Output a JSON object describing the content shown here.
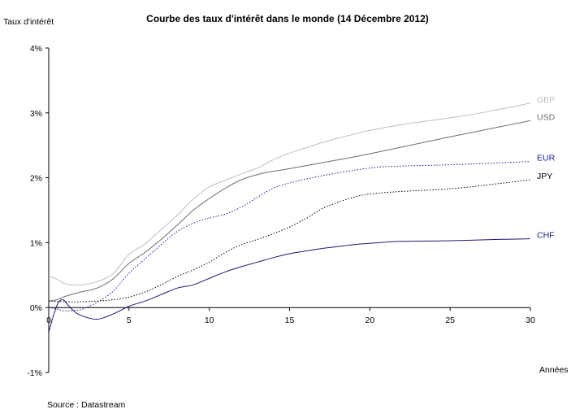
{
  "chart_data": {
    "type": "line",
    "title": "Courbe des taux d'intérêt dans le monde (14 Décembre 2012)",
    "ylabel": "Taux d'intérêt",
    "xlabel": "Années",
    "source": "Source : Datastream",
    "xlim": [
      0,
      30
    ],
    "ylim": [
      -1,
      4
    ],
    "x_ticks": [
      {
        "value": 0,
        "label": "0"
      },
      {
        "value": 5,
        "label": "5"
      },
      {
        "value": 10,
        "label": "10"
      },
      {
        "value": 15,
        "label": "15"
      },
      {
        "value": 20,
        "label": "20"
      },
      {
        "value": 25,
        "label": "25"
      },
      {
        "value": 30,
        "label": "30"
      }
    ],
    "y_ticks": [
      {
        "value": -1,
        "label": "-1%"
      },
      {
        "value": 0,
        "label": "0%"
      },
      {
        "value": 1,
        "label": "1%"
      },
      {
        "value": 2,
        "label": "2%"
      },
      {
        "value": 3,
        "label": "3%"
      },
      {
        "value": 4,
        "label": "4%"
      }
    ],
    "grid": false,
    "legend": "labels at line ends",
    "series": [
      {
        "name": "GBP",
        "color": "#bdbdbd",
        "dash": "solid",
        "points": [
          [
            0,
            0.48
          ],
          [
            0.5,
            0.44
          ],
          [
            1,
            0.37
          ],
          [
            2,
            0.35
          ],
          [
            3,
            0.4
          ],
          [
            4,
            0.52
          ],
          [
            5,
            0.82
          ],
          [
            6,
            0.98
          ],
          [
            7,
            1.2
          ],
          [
            8,
            1.42
          ],
          [
            9,
            1.67
          ],
          [
            10,
            1.86
          ],
          [
            11,
            1.96
          ],
          [
            12,
            2.06
          ],
          [
            13,
            2.15
          ],
          [
            14,
            2.28
          ],
          [
            15,
            2.38
          ],
          [
            16,
            2.46
          ],
          [
            17,
            2.54
          ],
          [
            18,
            2.61
          ],
          [
            19,
            2.67
          ],
          [
            20,
            2.73
          ],
          [
            22,
            2.82
          ],
          [
            24,
            2.89
          ],
          [
            26,
            2.96
          ],
          [
            28,
            3.05
          ],
          [
            30,
            3.15
          ]
        ]
      },
      {
        "name": "USD",
        "color": "#6e6e6e",
        "dash": "solid",
        "points": [
          [
            0,
            0.1
          ],
          [
            0.5,
            0.12
          ],
          [
            1,
            0.17
          ],
          [
            2,
            0.24
          ],
          [
            3,
            0.3
          ],
          [
            4,
            0.44
          ],
          [
            5,
            0.68
          ],
          [
            6,
            0.85
          ],
          [
            7,
            1.05
          ],
          [
            8,
            1.27
          ],
          [
            9,
            1.5
          ],
          [
            10,
            1.68
          ],
          [
            11,
            1.84
          ],
          [
            12,
            1.97
          ],
          [
            13,
            2.05
          ],
          [
            14,
            2.1
          ],
          [
            15,
            2.14
          ],
          [
            17,
            2.23
          ],
          [
            20,
            2.37
          ],
          [
            25,
            2.63
          ],
          [
            30,
            2.88
          ]
        ]
      },
      {
        "name": "EUR",
        "color": "#1a1aa0",
        "dash": "dotted",
        "points": [
          [
            0,
            0.0
          ],
          [
            0.5,
            -0.02
          ],
          [
            1,
            -0.05
          ],
          [
            2,
            -0.03
          ],
          [
            3,
            0.08
          ],
          [
            4,
            0.25
          ],
          [
            5,
            0.53
          ],
          [
            6,
            0.75
          ],
          [
            7,
            0.97
          ],
          [
            8,
            1.17
          ],
          [
            9,
            1.3
          ],
          [
            10,
            1.38
          ],
          [
            11,
            1.44
          ],
          [
            12,
            1.55
          ],
          [
            13,
            1.7
          ],
          [
            14,
            1.84
          ],
          [
            15,
            1.92
          ],
          [
            17,
            2.03
          ],
          [
            20,
            2.15
          ],
          [
            22,
            2.18
          ],
          [
            25,
            2.2
          ],
          [
            30,
            2.25
          ]
        ]
      },
      {
        "name": "JPY",
        "color": "#000000",
        "dash": "dotted",
        "points": [
          [
            0,
            0.1
          ],
          [
            1,
            0.09
          ],
          [
            2,
            0.09
          ],
          [
            3,
            0.1
          ],
          [
            4,
            0.12
          ],
          [
            5,
            0.16
          ],
          [
            6,
            0.24
          ],
          [
            7,
            0.35
          ],
          [
            8,
            0.48
          ],
          [
            9,
            0.58
          ],
          [
            10,
            0.7
          ],
          [
            11,
            0.85
          ],
          [
            12,
            0.97
          ],
          [
            13,
            1.05
          ],
          [
            14,
            1.14
          ],
          [
            15,
            1.24
          ],
          [
            16,
            1.37
          ],
          [
            17,
            1.52
          ],
          [
            18,
            1.62
          ],
          [
            19,
            1.7
          ],
          [
            20,
            1.75
          ],
          [
            22,
            1.79
          ],
          [
            25,
            1.83
          ],
          [
            28,
            1.91
          ],
          [
            30,
            1.97
          ]
        ]
      },
      {
        "name": "CHF",
        "color": "#1a1a6e",
        "dash": "solid",
        "points": [
          [
            0,
            -0.38
          ],
          [
            0.3,
            -0.12
          ],
          [
            0.6,
            0.08
          ],
          [
            0.9,
            0.12
          ],
          [
            1.2,
            0.04
          ],
          [
            1.6,
            -0.06
          ],
          [
            2,
            -0.12
          ],
          [
            3,
            -0.18
          ],
          [
            4,
            -0.1
          ],
          [
            5,
            0.02
          ],
          [
            6,
            0.1
          ],
          [
            7,
            0.2
          ],
          [
            8,
            0.3
          ],
          [
            9,
            0.35
          ],
          [
            10,
            0.45
          ],
          [
            11,
            0.55
          ],
          [
            12,
            0.63
          ],
          [
            13,
            0.7
          ],
          [
            14,
            0.77
          ],
          [
            15,
            0.83
          ],
          [
            16,
            0.87
          ],
          [
            17,
            0.91
          ],
          [
            18,
            0.94
          ],
          [
            19,
            0.97
          ],
          [
            20,
            0.99
          ],
          [
            22,
            1.02
          ],
          [
            25,
            1.03
          ],
          [
            28,
            1.05
          ],
          [
            30,
            1.06
          ]
        ]
      }
    ]
  }
}
